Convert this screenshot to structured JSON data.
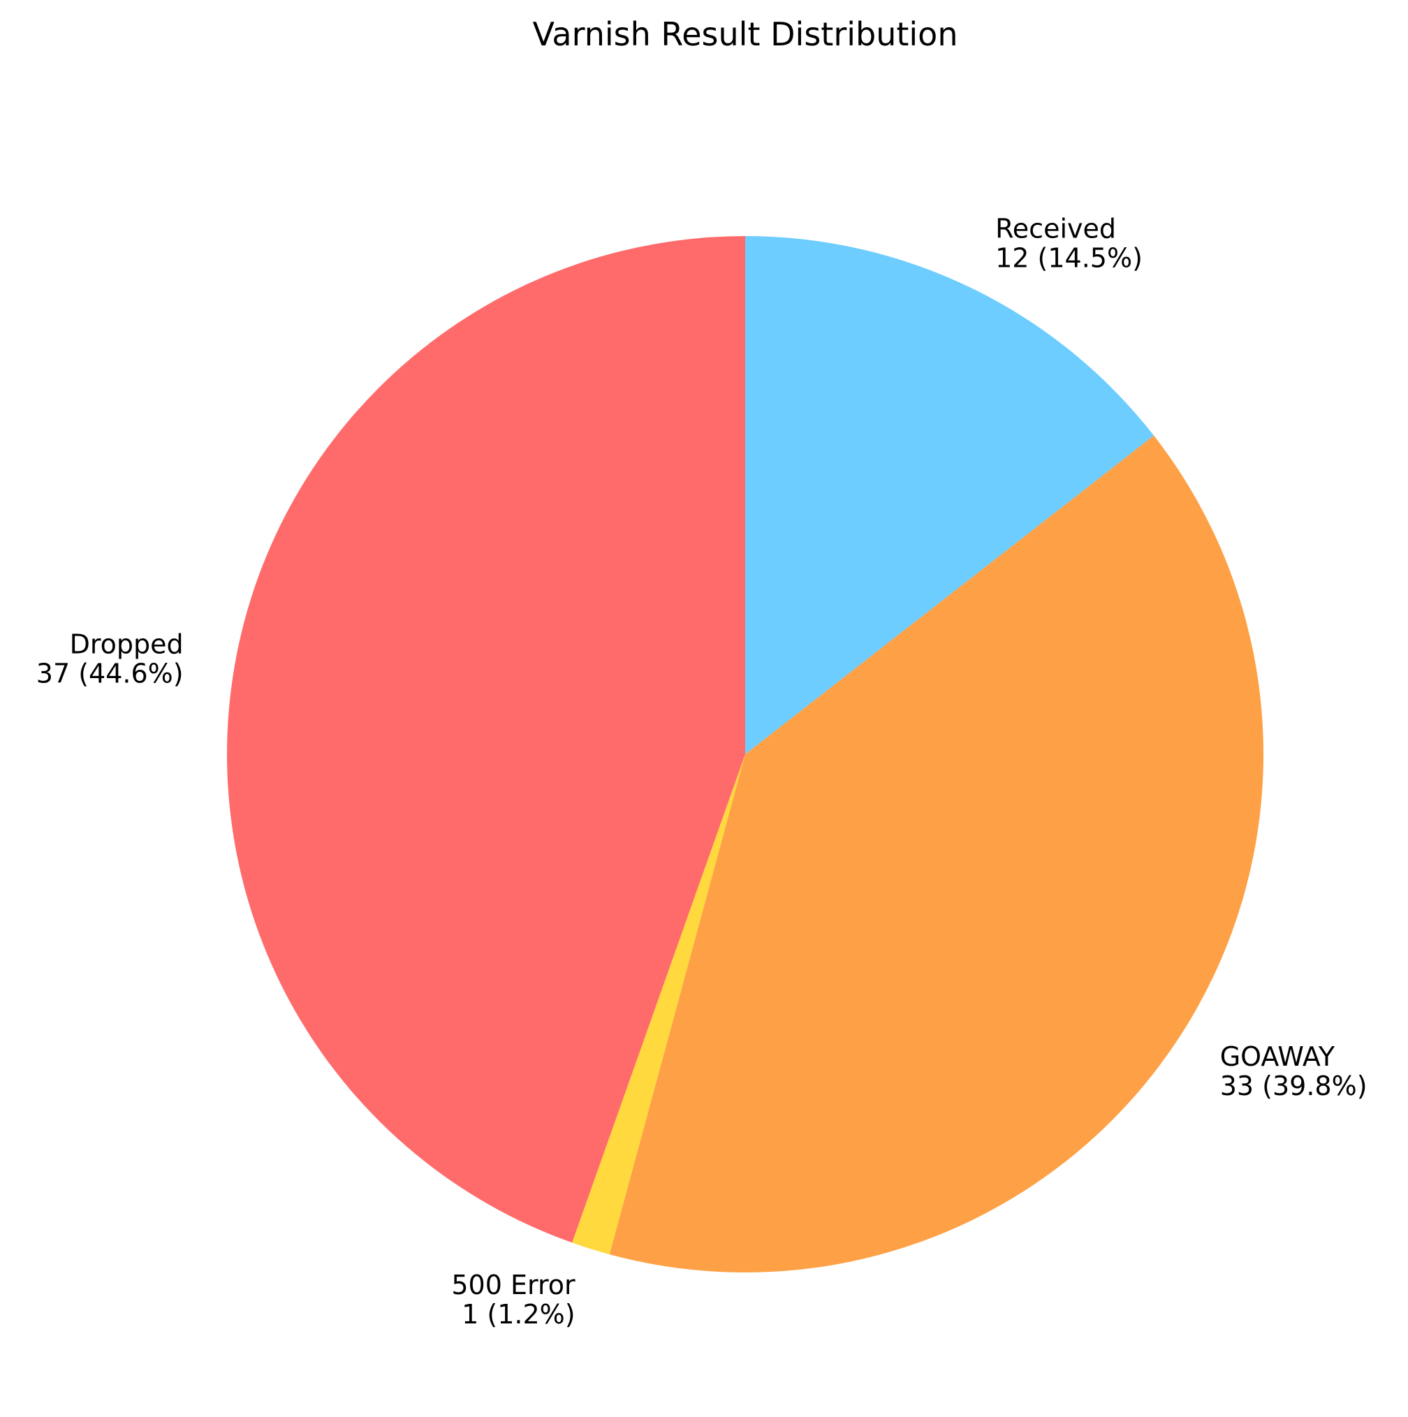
{
  "chart_data": {
    "type": "pie",
    "title": "Varnish Result Distribution",
    "start_angle_deg": 90,
    "direction": "clockwise",
    "slices": [
      {
        "label": "Received",
        "value": 12,
        "percent_label": "12 (14.5%)",
        "color": "#6DCDFF"
      },
      {
        "label": "GOAWAY",
        "value": 33,
        "percent_label": "33 (39.8%)",
        "color": "#FEA045"
      },
      {
        "label": "500 Error",
        "value": 1,
        "percent_label": "1 (1.2%)",
        "color": "#FFD93D"
      },
      {
        "label": "Dropped",
        "value": 37,
        "percent_label": "37 (44.6%)",
        "color": "#FF6B6B"
      }
    ]
  }
}
